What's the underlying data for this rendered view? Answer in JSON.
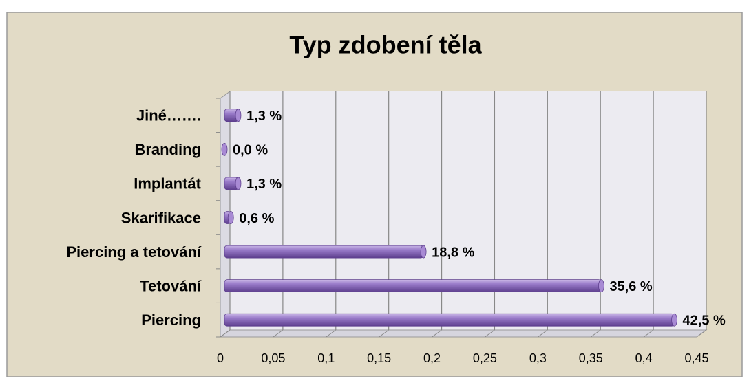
{
  "chart_data": {
    "type": "bar",
    "orientation": "horizontal",
    "title": "Typ zdobení těla",
    "categories": [
      "Piercing",
      "Tetování",
      "Piercing a tetování",
      "Skarifikace",
      "Implantát",
      "Branding",
      "Jiné……."
    ],
    "values": [
      0.425,
      0.356,
      0.188,
      0.006,
      0.013,
      0.0,
      0.013
    ],
    "value_labels": [
      "42,5 %",
      "35,6 %",
      "18,8 %",
      "0,6 %",
      "1,3 %",
      "0,0 %",
      "1,3 %"
    ],
    "color": "#8f6fc0",
    "xlim": [
      0,
      0.45
    ],
    "xticks": [
      0,
      {
        "value": 0.05,
        "label": "0,05"
      },
      {
        "value": 0.1,
        "label": "0,1"
      },
      {
        "value": 0.15,
        "label": "0,15"
      },
      {
        "value": 0.2,
        "label": "0,2"
      },
      {
        "value": 0.25,
        "label": "0,25"
      },
      {
        "value": 0.3,
        "label": "0,3"
      },
      {
        "value": 0.35,
        "label": "0,35"
      },
      {
        "value": 0.4,
        "label": "0,4"
      },
      {
        "value": 0.45,
        "label": "0,45"
      }
    ],
    "grid": true
  }
}
